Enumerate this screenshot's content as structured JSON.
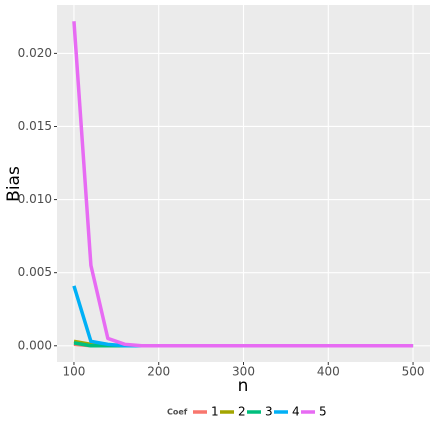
{
  "chart_data": {
    "type": "line",
    "x_label": "n",
    "y_label": "Bias",
    "legend_title": "Coef",
    "x": [
      100,
      120,
      140,
      160,
      180,
      200,
      300,
      400,
      500
    ],
    "series": [
      {
        "name": "1",
        "color": "#F8766D",
        "values": [
          0.0001,
          0.0,
          0.0,
          0.0,
          0.0,
          0.0,
          0.0,
          0.0,
          0.0
        ]
      },
      {
        "name": "2",
        "color": "#A3A500",
        "values": [
          0.0003,
          0.0001,
          0.0,
          0.0,
          0.0,
          0.0,
          0.0,
          0.0,
          0.0
        ]
      },
      {
        "name": "3",
        "color": "#00BF7D",
        "values": [
          0.0002,
          0.0,
          0.0,
          0.0,
          0.0,
          0.0,
          0.0,
          0.0,
          0.0
        ]
      },
      {
        "name": "4",
        "color": "#00B0F6",
        "values": [
          0.0041,
          0.0003,
          0.0001,
          0.0,
          0.0,
          0.0,
          0.0,
          0.0,
          0.0
        ]
      },
      {
        "name": "5",
        "color": "#E76BF3",
        "values": [
          0.0222,
          0.0055,
          0.0005,
          0.0001,
          0.0,
          0.0,
          0.0,
          0.0,
          0.0
        ]
      }
    ],
    "xlim": [
      80,
      520
    ],
    "xticks": [
      100,
      200,
      300,
      400,
      500
    ],
    "ylim": [
      -0.00111,
      0.02331
    ],
    "yticks": [
      {
        "value": 0,
        "label": "0.000"
      },
      {
        "value": 0.005,
        "label": "0.005"
      },
      {
        "value": 0.01,
        "label": "0.010"
      },
      {
        "value": 0.015,
        "label": "0.015"
      },
      {
        "value": 0.02,
        "label": "0.020"
      }
    ],
    "grid": true,
    "legend_position": "bottom"
  }
}
